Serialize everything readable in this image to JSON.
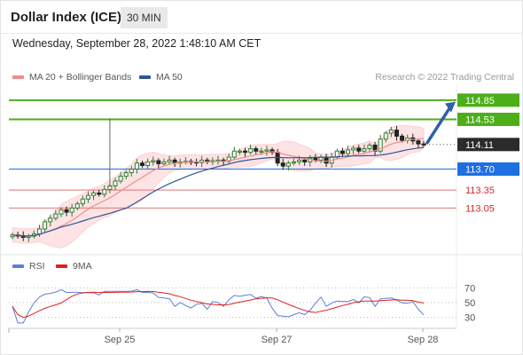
{
  "header": {
    "title": "Dollar Index (ICE)",
    "timeframe": "30 MIN"
  },
  "timestamp": "Wednesday, September 28, 2022 1:48:10 AM CET",
  "legend": {
    "ma20_label": "MA 20 + Bollinger Bands",
    "ma50_label": "MA 50",
    "copyright": "Research © 2022 Trading Central",
    "rsi_label": "RSI",
    "rsi_ma_label": "9MA"
  },
  "colors": {
    "up_candle": "#2e7d32",
    "down_candle": "#222222",
    "ma20": "#f28b8b",
    "bollinger_fill": "#fde0e0",
    "ma50": "#2f5597",
    "resistance": "#4caf1a",
    "current_price": "#222222",
    "pivot": "#1e6fe0",
    "support": "#e57373",
    "rsi": "#5b7fd6",
    "rsi_ma": "#e02020",
    "arrow": "#2f5fa8"
  },
  "chart_data": [
    {
      "type": "candlestick",
      "title": "Dollar Index (ICE)",
      "timeframe": "30 MIN",
      "x_ticks": [
        "Sep 25",
        "Sep 27",
        "Sep 28"
      ],
      "ylim": [
        112.3,
        115.1
      ],
      "price_levels": [
        {
          "label": "114.85",
          "value": 114.85,
          "role": "resistance"
        },
        {
          "label": "114.53",
          "value": 114.53,
          "role": "resistance"
        },
        {
          "label": "114.11",
          "value": 114.11,
          "role": "current"
        },
        {
          "label": "113.70",
          "value": 113.7,
          "role": "pivot"
        },
        {
          "label": "113.35",
          "value": 113.35,
          "role": "support"
        },
        {
          "label": "113.05",
          "value": 113.05,
          "role": "support"
        }
      ],
      "close_series": [
        112.6,
        112.59,
        112.56,
        112.58,
        112.62,
        112.7,
        112.82,
        112.88,
        112.95,
        113.02,
        112.98,
        113.05,
        113.12,
        113.2,
        113.26,
        113.3,
        113.28,
        113.36,
        113.42,
        113.5,
        113.58,
        113.64,
        113.7,
        113.8,
        113.76,
        113.82,
        113.84,
        113.79,
        113.82,
        113.85,
        113.8,
        113.82,
        113.83,
        113.82,
        113.81,
        113.85,
        113.82,
        113.84,
        113.85,
        113.83,
        113.9,
        114.0,
        114.0,
        113.98,
        114.04,
        114.0,
        114.0,
        114.02,
        113.98,
        113.8,
        113.75,
        113.8,
        113.82,
        113.85,
        113.82,
        113.88,
        113.85,
        113.9,
        113.8,
        113.9,
        114.0,
        113.96,
        114.02,
        114.05,
        114.0,
        114.04,
        114.1,
        114.0,
        114.2,
        114.3,
        114.35,
        114.25,
        114.18,
        114.22,
        114.17,
        114.12,
        114.11
      ],
      "bollinger_upper_max": 114.4,
      "bollinger_lower_min": 112.5,
      "forecast": "up",
      "forecast_target": 114.85
    },
    {
      "type": "line",
      "title": "RSI",
      "series": [
        {
          "name": "RSI"
        },
        {
          "name": "9MA"
        }
      ],
      "yticks": [
        70,
        50,
        30
      ],
      "ylim": [
        20,
        80
      ]
    }
  ]
}
